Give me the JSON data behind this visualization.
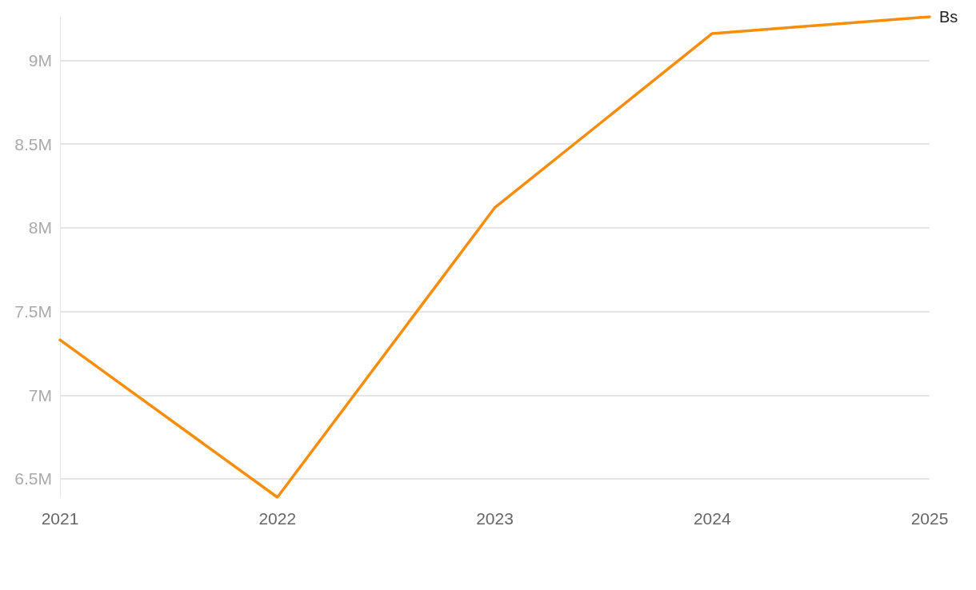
{
  "chart_data": {
    "type": "line",
    "categories": [
      "2021",
      "2022",
      "2023",
      "2024",
      "2025"
    ],
    "series": [
      {
        "name": "Bs",
        "color": "#f68d0c",
        "values": [
          7330000,
          6390000,
          8120000,
          9160000,
          9260000
        ]
      }
    ],
    "yticks": [
      {
        "value": 6500000,
        "label": "6.5M"
      },
      {
        "value": 7000000,
        "label": "7M"
      },
      {
        "value": 7500000,
        "label": "7.5M"
      },
      {
        "value": 8000000,
        "label": "8M"
      },
      {
        "value": 8500000,
        "label": "8.5M"
      },
      {
        "value": 9000000,
        "label": "9M"
      }
    ],
    "ylim": [
      6390000,
      9260000
    ],
    "grid": "y",
    "legend": false,
    "marker": "none",
    "line_style": "solid"
  }
}
